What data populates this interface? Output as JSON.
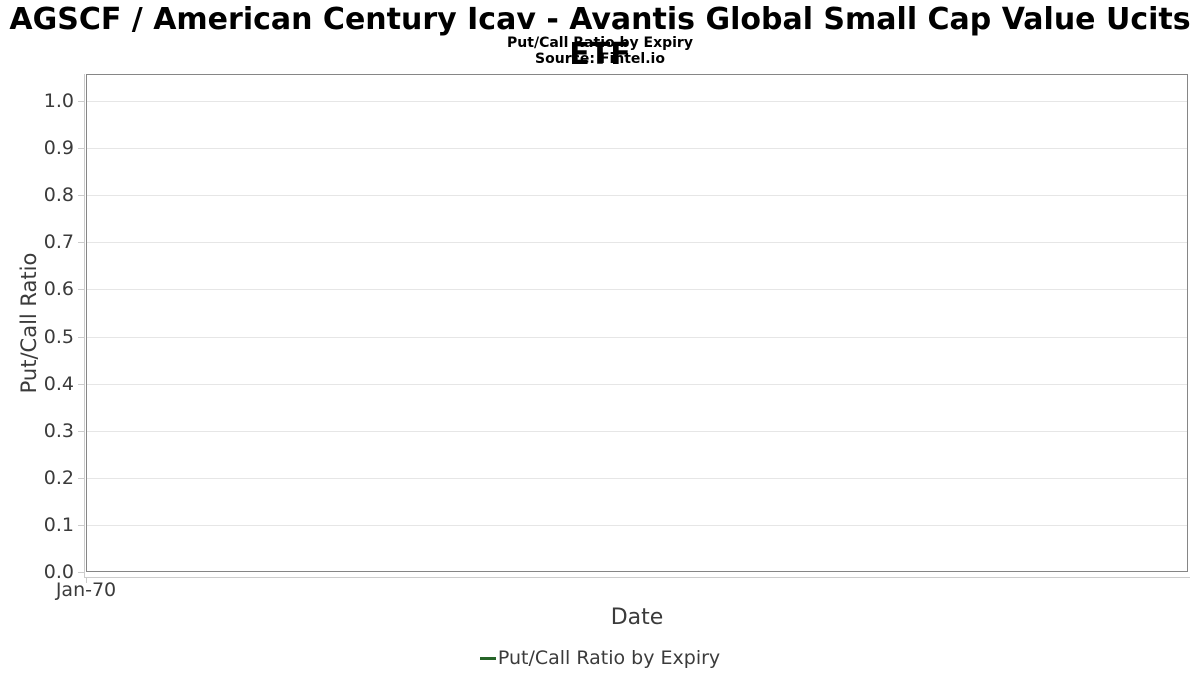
{
  "chart_data": {
    "type": "line",
    "title": "AGSCF / American Century Icav - Avantis Global Small Cap Value Ucits ETF",
    "subtitle": "Put/Call Ratio by Expiry",
    "source": "Source: Fintel.io",
    "xlabel": "Date",
    "ylabel": "Put/Call Ratio",
    "x_tick_labels": [
      "Jan-70"
    ],
    "y_tick_labels": [
      "0.0",
      "0.1",
      "0.2",
      "0.3",
      "0.4",
      "0.5",
      "0.6",
      "0.7",
      "0.8",
      "0.9",
      "1.0"
    ],
    "ylim": [
      0.0,
      1.057
    ],
    "xlim_labels": [
      "Jan-70"
    ],
    "grid": true,
    "legend": {
      "position": "bottom-center",
      "entries": [
        {
          "label": "Put/Call Ratio by Expiry",
          "color": "#266428",
          "marker": "line"
        }
      ]
    },
    "series": [
      {
        "name": "Put/Call Ratio by Expiry",
        "color": "#266428",
        "x": [],
        "values": []
      }
    ],
    "note": "empty plot - no data points rendered"
  },
  "colors": {
    "background": "#ffffff",
    "title_text": "#000000",
    "axis_text": "#3b3b3b",
    "grid_line": "#e6e6e6",
    "axis_line": "#cccccc",
    "plot_border": "#868686",
    "series_green": "#266428"
  }
}
